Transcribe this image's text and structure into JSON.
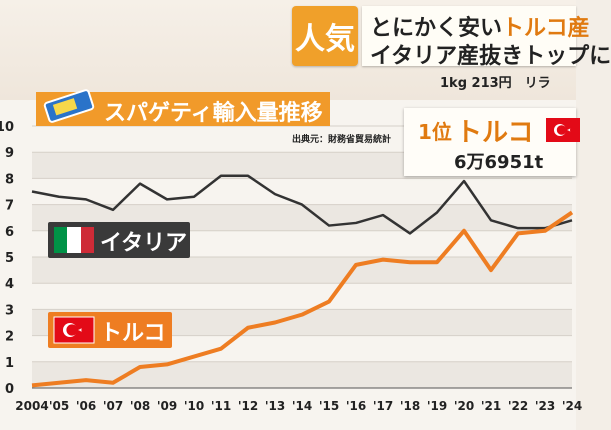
{
  "header": {
    "tag": "人気",
    "headline_line1_pre": "とにかく安い",
    "headline_line1_highlight": "トルコ産",
    "headline_line2": "イタリア産抜きトップに",
    "price_ticker": "1kg 213円　リラ"
  },
  "chart_title": "スパゲティ輸入量推移",
  "source_note": "出典元：財務省貿易統計",
  "callout": {
    "rank": "1位",
    "country": "トルコ",
    "amount": "6万6951t"
  },
  "legend": {
    "italy": "イタリア",
    "turkey": "トルコ"
  },
  "colors": {
    "italy_line": "#333333",
    "turkey_line": "#ee7d22",
    "title_bar": "#f19a2a"
  },
  "icons": {
    "pasta": "spaghetti-package-icon",
    "italy_flag": "italy-flag-icon",
    "turkey_flag": "turkey-flag-icon"
  },
  "chart_data": {
    "type": "line",
    "title": "スパゲティ輸入量推移",
    "x": [
      "2004",
      "'05",
      "'06",
      "'07",
      "'08",
      "'09",
      "'10",
      "'11",
      "'12",
      "'13",
      "'14",
      "'15",
      "'16",
      "'17",
      "'18",
      "'19",
      "'20",
      "'21",
      "'22",
      "'23",
      "'24"
    ],
    "y_ticks": [
      "0",
      "1",
      "2",
      "3",
      "4",
      "5",
      "6",
      "7",
      "8",
      "9",
      "10"
    ],
    "ylim": [
      0,
      10
    ],
    "grid": true,
    "series": [
      {
        "name": "イタリア",
        "values": [
          7.5,
          7.3,
          7.2,
          6.8,
          7.8,
          7.2,
          7.3,
          8.1,
          8.1,
          7.4,
          7.0,
          6.2,
          6.3,
          6.6,
          5.9,
          6.7,
          7.9,
          6.4,
          6.1,
          6.1,
          6.4
        ]
      },
      {
        "name": "トルコ",
        "values": [
          0.1,
          0.2,
          0.3,
          0.2,
          0.8,
          0.9,
          1.2,
          1.5,
          2.3,
          2.5,
          2.8,
          3.3,
          4.7,
          4.9,
          4.8,
          4.8,
          6.0,
          4.5,
          5.9,
          6.0,
          6.7
        ]
      }
    ]
  }
}
